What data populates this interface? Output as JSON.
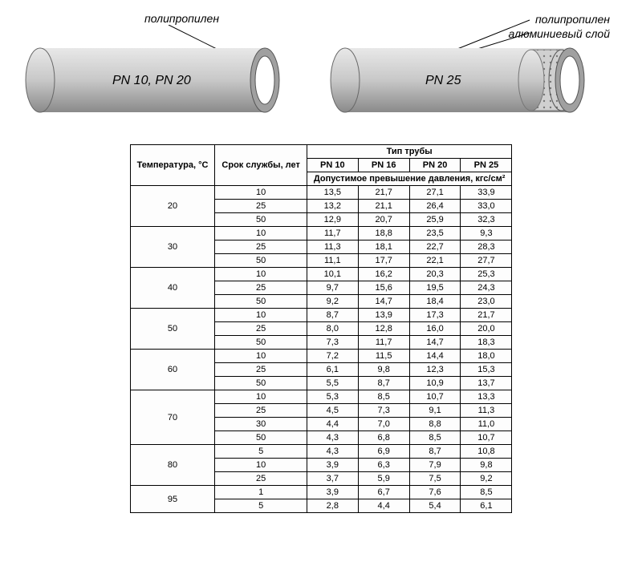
{
  "diagram": {
    "pipe1": {
      "label": "PN 10, PN 20",
      "annotation1": "полипропилен"
    },
    "pipe2": {
      "label": "PN 25",
      "annotation1": "полипропилен",
      "annotation2": "алюминиевый слой"
    },
    "colors": {
      "pipe_body": "#c8c8c8",
      "pipe_shadow": "#8a8a8a",
      "pipe_highlight": "#e8e8e8",
      "pipe_end_outer": "#a0a0a0",
      "pipe_end_inner": "#ffffff",
      "aluminum": "#d0d0d0"
    }
  },
  "table": {
    "headers": {
      "temperature": "Температура, °С",
      "service_life": "Срок службы, лет",
      "pipe_type": "Тип трубы",
      "pressure_note": "Допустимое превышение давления, кгс/см²",
      "pn10": "PN 10",
      "pn16": "PN 16",
      "pn20": "PN 20",
      "pn25": "PN 25"
    },
    "groups": [
      {
        "temp": "20",
        "rows": [
          {
            "life": "10",
            "vals": [
              "13,5",
              "21,7",
              "27,1",
              "33,9"
            ]
          },
          {
            "life": "25",
            "vals": [
              "13,2",
              "21,1",
              "26,4",
              "33,0"
            ]
          },
          {
            "life": "50",
            "vals": [
              "12,9",
              "20,7",
              "25,9",
              "32,3"
            ]
          }
        ]
      },
      {
        "temp": "30",
        "rows": [
          {
            "life": "10",
            "vals": [
              "11,7",
              "18,8",
              "23,5",
              "9,3"
            ]
          },
          {
            "life": "25",
            "vals": [
              "11,3",
              "18,1",
              "22,7",
              "28,3"
            ]
          },
          {
            "life": "50",
            "vals": [
              "11,1",
              "17,7",
              "22,1",
              "27,7"
            ]
          }
        ]
      },
      {
        "temp": "40",
        "rows": [
          {
            "life": "10",
            "vals": [
              "10,1",
              "16,2",
              "20,3",
              "25,3"
            ]
          },
          {
            "life": "25",
            "vals": [
              "9,7",
              "15,6",
              "19,5",
              "24,3"
            ]
          },
          {
            "life": "50",
            "vals": [
              "9,2",
              "14,7",
              "18,4",
              "23,0"
            ]
          }
        ]
      },
      {
        "temp": "50",
        "rows": [
          {
            "life": "10",
            "vals": [
              "8,7",
              "13,9",
              "17,3",
              "21,7"
            ]
          },
          {
            "life": "25",
            "vals": [
              "8,0",
              "12,8",
              "16,0",
              "20,0"
            ]
          },
          {
            "life": "50",
            "vals": [
              "7,3",
              "11,7",
              "14,7",
              "18,3"
            ]
          }
        ]
      },
      {
        "temp": "60",
        "rows": [
          {
            "life": "10",
            "vals": [
              "7,2",
              "11,5",
              "14,4",
              "18,0"
            ]
          },
          {
            "life": "25",
            "vals": [
              "6,1",
              "9,8",
              "12,3",
              "15,3"
            ]
          },
          {
            "life": "50",
            "vals": [
              "5,5",
              "8,7",
              "10,9",
              "13,7"
            ]
          }
        ]
      },
      {
        "temp": "70",
        "rows": [
          {
            "life": "10",
            "vals": [
              "5,3",
              "8,5",
              "10,7",
              "13,3"
            ]
          },
          {
            "life": "25",
            "vals": [
              "4,5",
              "7,3",
              "9,1",
              "11,3"
            ]
          },
          {
            "life": "30",
            "vals": [
              "4,4",
              "7,0",
              "8,8",
              "11,0"
            ]
          },
          {
            "life": "50",
            "vals": [
              "4,3",
              "6,8",
              "8,5",
              "10,7"
            ]
          }
        ]
      },
      {
        "temp": "80",
        "rows": [
          {
            "life": "5",
            "vals": [
              "4,3",
              "6,9",
              "8,7",
              "10,8"
            ]
          },
          {
            "life": "10",
            "vals": [
              "3,9",
              "6,3",
              "7,9",
              "9,8"
            ]
          },
          {
            "life": "25",
            "vals": [
              "3,7",
              "5,9",
              "7,5",
              "9,2"
            ]
          }
        ]
      },
      {
        "temp": "95",
        "rows": [
          {
            "life": "1",
            "vals": [
              "3,9",
              "6,7",
              "7,6",
              "8,5"
            ]
          },
          {
            "life": "5",
            "vals": [
              "2,8",
              "4,4",
              "5,4",
              "6,1"
            ]
          }
        ]
      }
    ]
  }
}
